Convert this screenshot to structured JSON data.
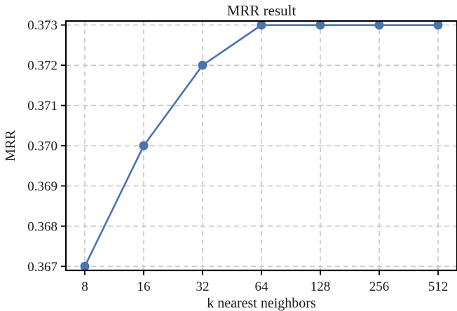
{
  "chart_data": {
    "type": "line",
    "title": "MRR result",
    "xlabel": "k nearest neighbors",
    "ylabel": "MRR",
    "categories": [
      "8",
      "16",
      "32",
      "64",
      "128",
      "256",
      "512"
    ],
    "series": [
      {
        "values": [
          0.367,
          0.37,
          0.372,
          0.373,
          0.373,
          0.373,
          0.373
        ]
      }
    ],
    "y_ticks": [
      "0.367",
      "0.368",
      "0.369",
      "0.370",
      "0.371",
      "0.372",
      "0.373"
    ],
    "ylim": [
      0.3669,
      0.3731
    ],
    "grid": true,
    "line_color": "#4c72b0",
    "marker": "circle"
  }
}
